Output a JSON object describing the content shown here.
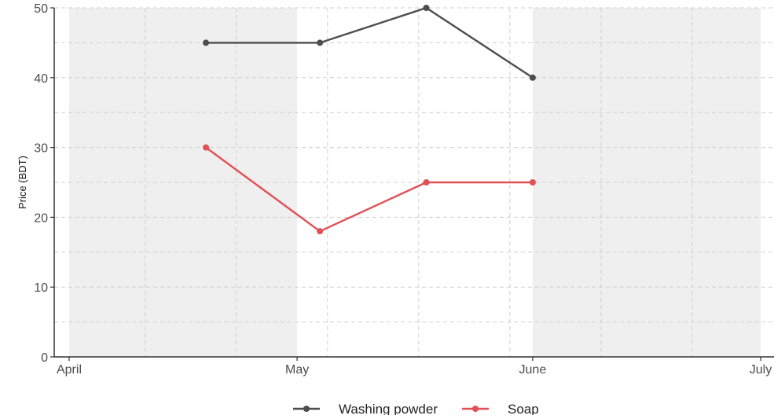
{
  "chart_data": {
    "type": "line",
    "title": "",
    "xlabel": "",
    "ylabel": "Price (BDT)",
    "x_axis": {
      "type": "date",
      "range": [
        "2023-04-01",
        "2023-07-01"
      ],
      "ticks": [
        {
          "date": "2023-04-01",
          "label": "April"
        },
        {
          "date": "2023-05-01",
          "label": "May"
        },
        {
          "date": "2023-06-01",
          "label": "June"
        },
        {
          "date": "2023-07-01",
          "label": "July"
        }
      ]
    },
    "ylim": [
      0,
      50
    ],
    "yticks": [
      0,
      10,
      20,
      30,
      40,
      50
    ],
    "grid": true,
    "month_shading": [
      {
        "from": "2023-04-01",
        "to": "2023-05-01"
      },
      {
        "from": "2023-06-01",
        "to": "2023-07-01"
      }
    ],
    "legend": {
      "position": "bottom"
    },
    "series": [
      {
        "name": "Washing powder",
        "color": "#4d4d4d",
        "points": [
          {
            "x": "2023-04-19",
            "y": 45
          },
          {
            "x": "2023-05-04",
            "y": 45
          },
          {
            "x": "2023-05-18",
            "y": 50
          },
          {
            "x": "2023-06-01",
            "y": 40
          }
        ]
      },
      {
        "name": "Soap",
        "color": "#e05054",
        "points": [
          {
            "x": "2023-04-19",
            "y": 30
          },
          {
            "x": "2023-05-04",
            "y": 18
          },
          {
            "x": "2023-05-18",
            "y": 25
          },
          {
            "x": "2023-06-01",
            "y": 25
          }
        ]
      }
    ]
  }
}
